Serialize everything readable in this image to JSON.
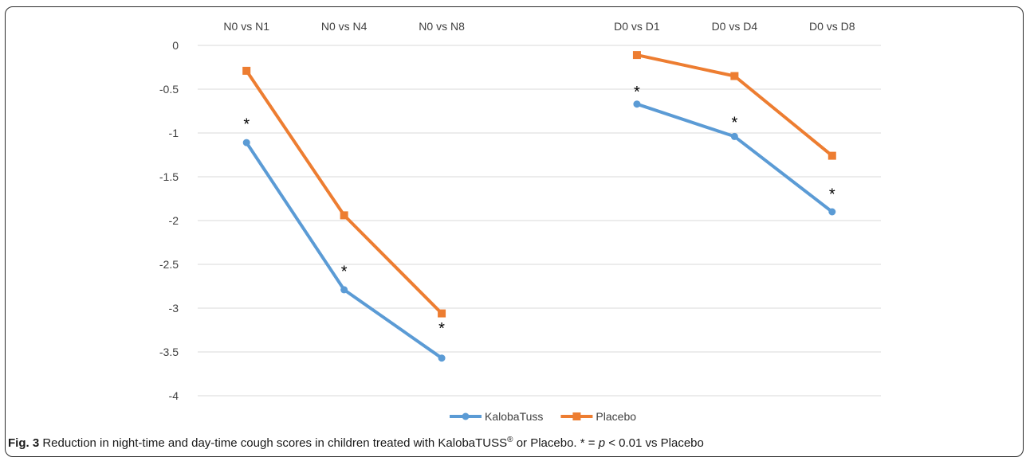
{
  "chart_data": {
    "type": "line",
    "title": "",
    "xlabel": "",
    "ylabel": "",
    "x_axis_position": "top",
    "categories": [
      "N0 vs N1",
      "N0 vs N4",
      "N0 vs N8",
      "",
      "D0 vs D1",
      "D0 vs D4",
      "D0 vs D8"
    ],
    "ylim": [
      -4,
      0
    ],
    "y_ticks": [
      0,
      -0.5,
      -1,
      -1.5,
      -2,
      -2.5,
      -3,
      -3.5,
      -4
    ],
    "y_tick_labels": [
      "0",
      "-0.5",
      "-1",
      "-1.5",
      "-2",
      "-2.5",
      "-3",
      "-3.5",
      "-4"
    ],
    "grid": "horizontal",
    "legend_position": "bottom",
    "series": [
      {
        "name": "KalobaTuss",
        "color": "#5b9bd5",
        "marker": "circle",
        "values": [
          -1.11,
          -2.79,
          -3.57,
          null,
          -0.67,
          -1.04,
          -1.9
        ]
      },
      {
        "name": "Placebo",
        "color": "#ed7d31",
        "marker": "square",
        "values": [
          -0.29,
          -1.94,
          -3.06,
          null,
          -0.11,
          -0.35,
          -1.26
        ]
      }
    ],
    "annotations": [
      {
        "text": "*",
        "category_index": 0,
        "y": -0.87
      },
      {
        "text": "*",
        "category_index": 1,
        "y": -2.55
      },
      {
        "text": "*",
        "category_index": 2,
        "y": -3.2
      },
      {
        "text": "*",
        "category_index": 4,
        "y": -0.5
      },
      {
        "text": "*",
        "category_index": 5,
        "y": -0.85
      },
      {
        "text": "*",
        "category_index": 6,
        "y": -1.67
      }
    ]
  },
  "caption": {
    "fig_label": "Fig. 3",
    "text_before_sup": " Reduction in night-time and day-time cough scores in children treated with KalobaTUSS",
    "sup": "®",
    "text_middle": " or Placebo. * = ",
    "p_symbol": "p",
    "text_after": " < 0.01 vs Placebo"
  }
}
